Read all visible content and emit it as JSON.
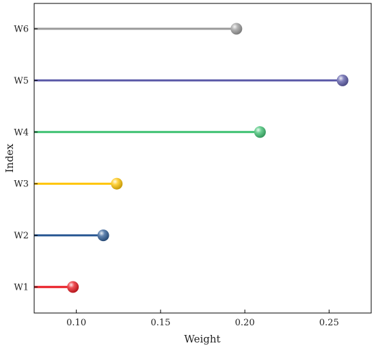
{
  "chart_data": {
    "type": "lollipop",
    "orientation": "horizontal",
    "categories": [
      "W1",
      "W2",
      "W3",
      "W4",
      "W5",
      "W6"
    ],
    "values": [
      0.098,
      0.116,
      0.124,
      0.209,
      0.258,
      0.195
    ],
    "colors": [
      "#e8141c",
      "#2b5a94",
      "#ffc400",
      "#3cc070",
      "#5b5aa8",
      "#9a9a9a"
    ],
    "xlabel": "Weight",
    "ylabel": "Index",
    "xlim": [
      0.075,
      0.275
    ],
    "xticks": [
      0.1,
      0.15,
      0.2,
      0.25
    ],
    "xtick_labels": [
      "0.10",
      "0.15",
      "0.20",
      "0.25"
    ],
    "grid": false,
    "legend": "none"
  }
}
